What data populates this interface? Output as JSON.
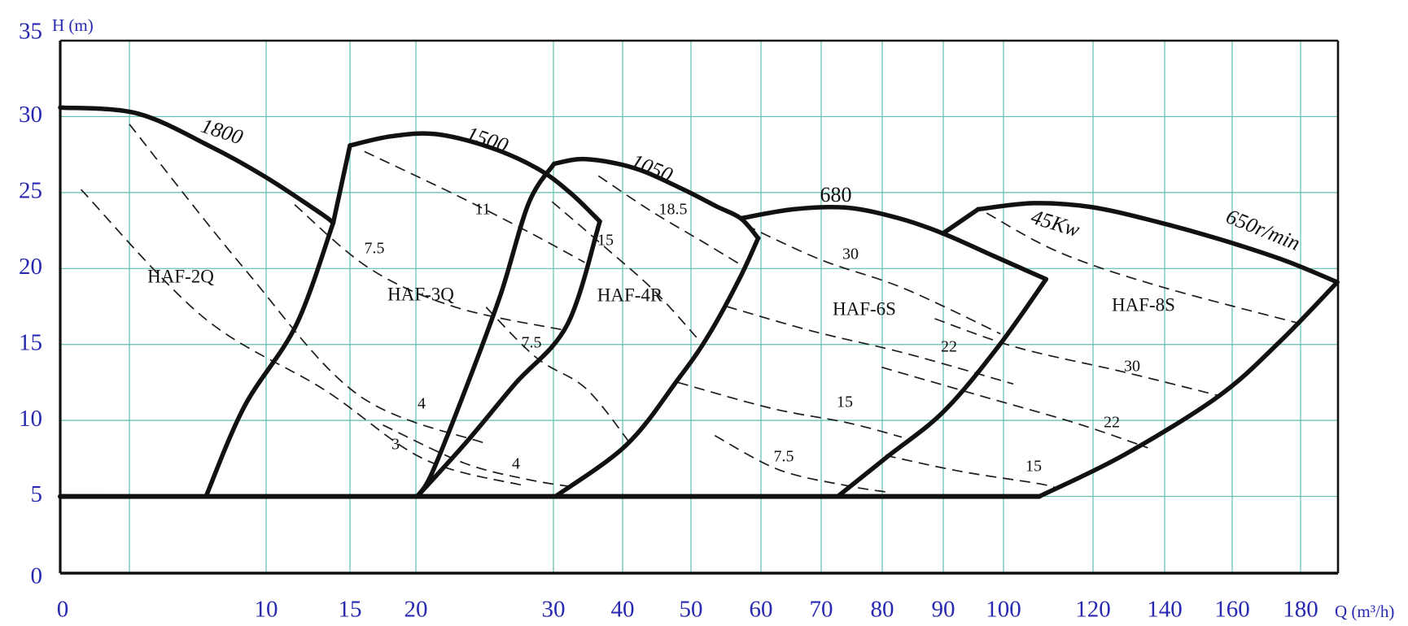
{
  "chart": {
    "y_axis_title": "H (m)",
    "x_axis_title": "Q (m³/h)",
    "y_tick_labels": [
      "35",
      "30",
      "25",
      "20",
      "15",
      "10",
      "5",
      "0"
    ],
    "x_tick_labels": [
      "0",
      "10",
      "15",
      "20",
      "30",
      "40",
      "50",
      "60",
      "70",
      "80",
      "90",
      "100",
      "120",
      "140",
      "160",
      "180"
    ],
    "grid_color": "#5fbdb2",
    "axis_label_color": "#2828b0",
    "curve_color": "#111111"
  },
  "chart_data": {
    "type": "area",
    "title": "",
    "xlabel": "Q (m³/h)",
    "ylabel": "H (m)",
    "x_scale": "non-linear (log-like) flow axis",
    "x_ticks": [
      0,
      10,
      15,
      20,
      30,
      40,
      50,
      60,
      70,
      80,
      90,
      100,
      120,
      140,
      160,
      180
    ],
    "unlabeled_x_gridlines": [
      5
    ],
    "y_ticks": [
      0,
      5,
      10,
      15,
      20,
      25,
      30,
      35
    ],
    "ylim": [
      0,
      35
    ],
    "grid": true,
    "base_head_m": 5,
    "base_line_QH": [
      [
        0,
        5
      ],
      [
        108,
        5
      ]
    ],
    "series": [
      {
        "model": "HAF-2Q",
        "speed_label": "1800",
        "speed_r_min": 1800,
        "top_curve_QH": [
          [
            0,
            30.6
          ],
          [
            5.3,
            30.2
          ],
          [
            8,
            28
          ],
          [
            10,
            26
          ],
          [
            13.3,
            23.6
          ],
          [
            14,
            23
          ]
        ],
        "right_edge_QH": [
          [
            14,
            23
          ],
          [
            11.8,
            16.3
          ],
          [
            9.2,
            10.9
          ],
          [
            7.8,
            5
          ]
        ],
        "power_lines": [
          {
            "label": "4",
            "value_kW": 4,
            "path_QH": [
              [
                5,
                29.5
              ],
              [
                9.2,
                20
              ],
              [
                15.6,
                11.7
              ],
              [
                25,
                8.5
              ]
            ]
          },
          {
            "label": "3",
            "value_kW": 3,
            "path_QH": [
              [
                1.5,
                25.2
              ],
              [
                7.7,
                16.8
              ],
              [
                13.5,
                12
              ],
              [
                20.6,
                7.45
              ],
              [
                27.9,
                5.7
              ]
            ]
          }
        ]
      },
      {
        "model": "HAF-3Q",
        "speed_label": "1500",
        "speed_r_min": 1500,
        "left_edge_QH": [
          [
            15,
            28.1
          ],
          [
            14,
            23
          ]
        ],
        "top_curve_QH": [
          [
            15,
            28.1
          ],
          [
            18.1,
            28.7
          ],
          [
            21.4,
            28.85
          ],
          [
            25.3,
            28
          ],
          [
            28.8,
            26.6
          ],
          [
            32.4,
            25
          ],
          [
            36.7,
            23.1
          ]
        ],
        "right_edge_QH": [
          [
            36.7,
            23.1
          ],
          [
            32,
            16.3
          ],
          [
            27.2,
            12.4
          ],
          [
            23.7,
            8.6
          ],
          [
            20.1,
            5
          ]
        ],
        "power_lines": [
          {
            "label": "7.5",
            "value_kW": 7.5,
            "path_QH": [
              [
                11.7,
                24.2
              ],
              [
                16.5,
                20
              ],
              [
                22.9,
                17.45
              ],
              [
                31.5,
                15.95
              ]
            ]
          },
          {
            "label": "11",
            "value_kW": 11,
            "path_QH": [
              [
                16.1,
                27.7
              ],
              [
                23,
                24.8
              ],
              [
                28.2,
                22.4
              ],
              [
                34.5,
                20.4
              ]
            ]
          },
          {
            "label": "4",
            "value_kW": 4,
            "path_QH": [
              [
                17.5,
                9.7
              ],
              [
                23.5,
                7.2
              ],
              [
                28.2,
                6.1
              ],
              [
                33.2,
                5.6
              ]
            ]
          }
        ]
      },
      {
        "model": "HAF-4R",
        "speed_label": "1050",
        "speed_r_min": 1050,
        "left_edge_QH": [
          [
            30.1,
            26.9
          ],
          [
            28.2,
            24.3
          ],
          [
            26.2,
            18.4
          ],
          [
            23.8,
            12.5
          ],
          [
            21.2,
            6.6
          ],
          [
            20.1,
            5
          ]
        ],
        "top_curve_QH": [
          [
            30.1,
            26.9
          ],
          [
            34.7,
            27.2
          ],
          [
            41.8,
            26.6
          ],
          [
            48.9,
            25.2
          ],
          [
            53.6,
            24.1
          ],
          [
            57.1,
            23.3
          ],
          [
            59.6,
            22
          ]
        ],
        "right_edge_QH": [
          [
            59.6,
            22
          ],
          [
            56.9,
            19.3
          ],
          [
            52.5,
            15.6
          ],
          [
            48.1,
            12.7
          ],
          [
            40.6,
            8.4
          ],
          [
            30.3,
            5
          ]
        ],
        "power_lines": [
          {
            "label": "7.5",
            "value_kW": 7.5,
            "path_QH": [
              [
                25.1,
                17.45
              ],
              [
                28.8,
                14.1
              ],
              [
                34.7,
                12.1
              ],
              [
                41.1,
                8.5
              ]
            ]
          },
          {
            "label": "15",
            "value_kW": 15,
            "path_QH": [
              [
                29.9,
                24.4
              ],
              [
                37.6,
                21.35
              ],
              [
                44.7,
                18.5
              ],
              [
                51.3,
                15.2
              ]
            ]
          },
          {
            "label": "18.5",
            "value_kW": 18.5,
            "path_QH": [
              [
                36.5,
                26.1
              ],
              [
                44.1,
                23.8
              ],
              [
                51.9,
                21.7
              ],
              [
                58,
                20
              ]
            ]
          }
        ]
      },
      {
        "model": "HAF-6S",
        "speed_label": "680",
        "speed_r_min": 680,
        "top_curve_QH": [
          [
            57.1,
            23.3
          ],
          [
            65.4,
            23.9
          ],
          [
            74.3,
            24
          ],
          [
            82.8,
            23.3
          ],
          [
            90,
            22.3
          ],
          [
            98.5,
            20.8
          ],
          [
            109.5,
            19.3
          ]
        ],
        "right_edge_QH": [
          [
            109.5,
            19.3
          ],
          [
            99.2,
            14.9
          ],
          [
            90.1,
            10.6
          ],
          [
            80.8,
            7.6
          ],
          [
            72.7,
            5
          ]
        ],
        "power_lines": [
          {
            "label": "30",
            "value_kW": 30,
            "path_QH": [
              [
                57.8,
                22.85
              ],
              [
                70.1,
                20.55
              ],
              [
                83.5,
                18.7
              ],
              [
                99.5,
                15.7
              ]
            ]
          },
          {
            "label": "22",
            "value_kW": 22,
            "path_QH": [
              [
                55.1,
                17.5
              ],
              [
                68.8,
                15.85
              ],
              [
                83.5,
                14.45
              ],
              [
                102.2,
                12.4
              ]
            ]
          },
          {
            "label": "15",
            "value_kW": 15,
            "path_QH": [
              [
                48.1,
                12.5
              ],
              [
                61.7,
                10.8
              ],
              [
                74.3,
                9.85
              ],
              [
                83.2,
                8.9
              ]
            ]
          },
          {
            "label": "7.5",
            "value_kW": 7.5,
            "path_QH": [
              [
                53.4,
                9
              ],
              [
                63,
                6.75
              ],
              [
                74.3,
                5.7
              ],
              [
                80.5,
                5.3
              ]
            ]
          }
        ]
      },
      {
        "model": "HAF-8S",
        "speed_label": "650r/min",
        "speed_r_min": 650,
        "left_edge_QH": [
          [
            95.8,
            23.9
          ],
          [
            89.9,
            22.3
          ]
        ],
        "top_curve_QH": [
          [
            95.8,
            23.9
          ],
          [
            106.7,
            24.3
          ],
          [
            119.5,
            24.05
          ],
          [
            137.5,
            23.1
          ],
          [
            156.7,
            21.9
          ],
          [
            175.7,
            20.5
          ],
          [
            189.8,
            19.1
          ]
        ],
        "right_edge_QH": [
          [
            189.8,
            19.1
          ],
          [
            174,
            15.2
          ],
          [
            156,
            11.6
          ],
          [
            128.4,
            7.7
          ],
          [
            108,
            5
          ]
        ],
        "power_lines": [
          {
            "label": "45Kw",
            "value_kW": 45,
            "path_QH": [
              [
                97.2,
                23.65
              ],
              [
                112.2,
                21.1
              ],
              [
                137.5,
                18.9
              ],
              [
                179.5,
                16.4
              ]
            ]
          },
          {
            "label": "30",
            "value_kW": 30,
            "path_QH": [
              [
                88.6,
                16.7
              ],
              [
                103.1,
                14.8
              ],
              [
                128.4,
                13.2
              ],
              [
                156.7,
                11.6
              ]
            ]
          },
          {
            "label": "22",
            "value_kW": 22,
            "path_QH": [
              [
                79.9,
                13.5
              ],
              [
                95.5,
                11.7
              ],
              [
                115.9,
                9.85
              ],
              [
                135.3,
                8.2
              ]
            ]
          },
          {
            "label": "15",
            "value_kW": 15,
            "path_QH": [
              [
                80.5,
                7.7
              ],
              [
                92.8,
                6.65
              ],
              [
                106.7,
                5.9
              ],
              [
                111.4,
                5.6
              ]
            ]
          }
        ]
      }
    ]
  }
}
